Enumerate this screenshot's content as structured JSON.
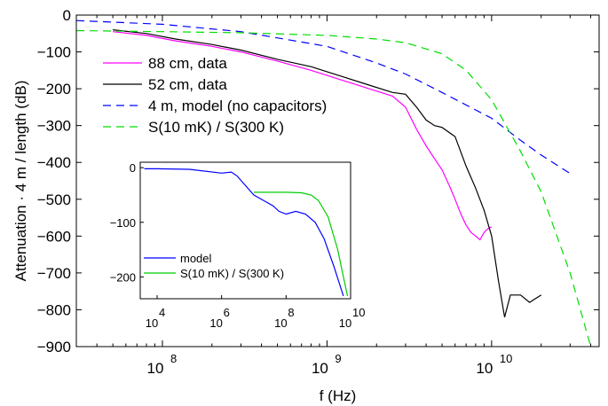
{
  "chart_data": [
    {
      "type": "line",
      "xlabel": "f (Hz)",
      "ylabel": "Attenuation · 4 m / length (dB)",
      "xscale": "log",
      "xlim": [
        30000000.0,
        45000000000.0
      ],
      "ylim": [
        -900,
        0
      ],
      "xticks": [
        {
          "base": "10",
          "exp": "8",
          "value": 100000000.0
        },
        {
          "base": "10",
          "exp": "9",
          "value": 1000000000.0
        },
        {
          "base": "10",
          "exp": "10",
          "value": 10000000000.0
        }
      ],
      "yticks": [
        "0",
        "−100",
        "−200",
        "−300",
        "−400",
        "−500",
        "−600",
        "−700",
        "−800",
        "−900"
      ],
      "grid": false,
      "legend_position": "upper-left",
      "series": [
        {
          "name": "88 cm, data",
          "color": "#ff00ff",
          "style": "solid",
          "x": [
            50000000.0,
            80000000.0,
            120000000.0,
            200000000.0,
            300000000.0,
            500000000.0,
            800000000.0,
            1200000000.0,
            1800000000.0,
            2500000000.0,
            3000000000.0,
            3500000000.0,
            4000000000.0,
            4500000000.0,
            5000000000.0,
            5500000000.0,
            6000000000.0,
            6500000000.0,
            7000000000.0,
            7500000000.0,
            8000000000.0,
            8500000000.0,
            9000000000.0,
            9500000000.0,
            10000000000.0
          ],
          "y": [
            -45,
            -55,
            -70,
            -85,
            -100,
            -125,
            -150,
            -175,
            -200,
            -220,
            -250,
            -310,
            -355,
            -390,
            -420,
            -460,
            -500,
            -540,
            -570,
            -590,
            -600,
            -610,
            -590,
            -580,
            -575
          ]
        },
        {
          "name": "52 cm, data",
          "color": "#000000",
          "style": "solid",
          "x": [
            50000000.0,
            80000000.0,
            120000000.0,
            200000000.0,
            300000000.0,
            500000000.0,
            800000000.0,
            1200000000.0,
            1800000000.0,
            2500000000.0,
            3000000000.0,
            3500000000.0,
            4000000000.0,
            4500000000.0,
            5000000000.0,
            6000000000.0,
            7000000000.0,
            8000000000.0,
            9000000000.0,
            10000000000.0,
            11000000000.0,
            12000000000.0,
            13000000000.0,
            15000000000.0,
            17000000000.0,
            20000000000.0
          ],
          "y": [
            -40,
            -50,
            -65,
            -80,
            -95,
            -120,
            -140,
            -165,
            -190,
            -210,
            -215,
            -250,
            -285,
            -300,
            -305,
            -330,
            -410,
            -470,
            -530,
            -600,
            -720,
            -820,
            -760,
            -760,
            -780,
            -760
          ]
        },
        {
          "name": "4 m, model (no capacitors)",
          "color": "#0000ff",
          "style": "dashed",
          "x": [
            30000000.0,
            100000000.0,
            300000000.0,
            1000000000.0,
            2000000000.0,
            3000000000.0,
            5000000000.0,
            10000000000.0,
            15000000000.0,
            20000000000.0,
            30000000000.0
          ],
          "y": [
            -15,
            -25,
            -45,
            -85,
            -130,
            -160,
            -210,
            -280,
            -340,
            -380,
            -430
          ]
        },
        {
          "name": "S(10 mK) / S(300 K)",
          "color": "#00dd00",
          "style": "dashed",
          "x": [
            30000000.0,
            100000000.0,
            300000000.0,
            1000000000.0,
            2000000000.0,
            3000000000.0,
            5000000000.0,
            7000000000.0,
            10000000000.0,
            15000000000.0,
            20000000000.0,
            30000000000.0,
            40000000000.0
          ],
          "y": [
            -42,
            -45,
            -48,
            -55,
            -65,
            -75,
            -105,
            -150,
            -230,
            -370,
            -480,
            -700,
            -900
          ]
        }
      ]
    },
    {
      "type": "line",
      "xscale": "log",
      "xlim": [
        3000.0,
        10000000000.0
      ],
      "ylim": [
        -240,
        10
      ],
      "xticks": [
        {
          "base": "10",
          "exp": "4",
          "value": 10000.0
        },
        {
          "base": "10",
          "exp": "6",
          "value": 1000000.0
        },
        {
          "base": "10",
          "exp": "8",
          "value": 100000000.0
        },
        {
          "base": "10",
          "exp": "10",
          "value": 10000000000.0
        }
      ],
      "yticks": [
        "0",
        "−100",
        "−200"
      ],
      "legend_position": "lower-left",
      "series": [
        {
          "name": "model",
          "color": "#0000ff",
          "style": "solid",
          "x": [
            4000.0,
            10000.0,
            100000.0,
            1000000.0,
            2000000.0,
            3000000.0,
            5000000.0,
            10000000.0,
            20000000.0,
            40000000.0,
            60000000.0,
            100000000.0,
            200000000.0,
            400000000.0,
            800000000.0,
            1500000000.0,
            3000000000.0,
            6000000000.0
          ],
          "y": [
            -2,
            -2,
            -3,
            -10,
            -8,
            -15,
            -30,
            -50,
            -60,
            -70,
            -80,
            -85,
            -80,
            -85,
            -100,
            -130,
            -180,
            -235
          ]
        },
        {
          "name": "S(10 mK) / S(300 K)",
          "color": "#00cc00",
          "style": "solid",
          "x": [
            10000000.0,
            30000000.0,
            100000000.0,
            300000000.0,
            600000000.0,
            1000000000.0,
            2000000000.0,
            4000000000.0,
            6000000000.0,
            8000000000.0
          ],
          "y": [
            -45,
            -45,
            -45,
            -46,
            -50,
            -60,
            -90,
            -150,
            -200,
            -235
          ]
        }
      ]
    }
  ]
}
